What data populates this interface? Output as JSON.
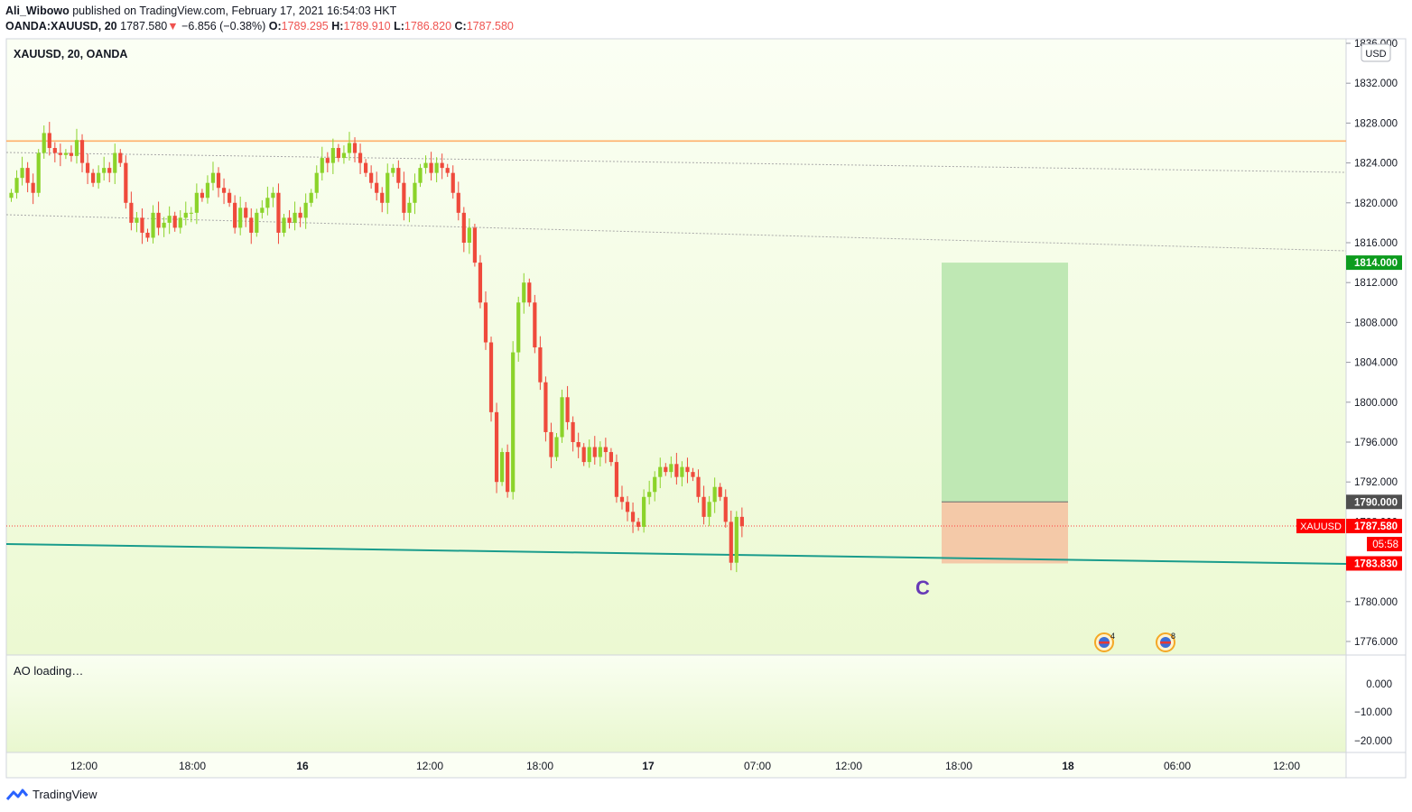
{
  "header": {
    "author": "Ali_Wibowo",
    "published_text": "published on TradingView.com, February 17, 2021 16:54:03 HKT",
    "symbol_full": "OANDA:XAUUSD, 20",
    "last_price": "1787.580",
    "change_arrow": "▼",
    "change": "−6.856 (−0.38%)",
    "o_label": "O:",
    "o_value": "1789.295",
    "h_label": "H:",
    "h_value": "1789.910",
    "l_label": "L:",
    "l_value": "1786.820",
    "c_label": "C:",
    "c_value": "1787.580"
  },
  "pane_title": "XAUUSD, 20, OANDA",
  "currency_badge": "USD",
  "indicator_label": "AO loading…",
  "wave_label": "C",
  "events": [
    {
      "icon": "us-flag-icon",
      "count": "4"
    },
    {
      "icon": "us-flag-icon",
      "count": "8"
    }
  ],
  "price_tags": {
    "target": "1814.000",
    "entry": "1790.000",
    "symbol": "XAUUSD",
    "current": "1787.580",
    "countdown": "05:58",
    "stop": "1783.830"
  },
  "footer_brand": "TradingView",
  "colors": {
    "bull": "#8bd32a",
    "bear": "#ef4a3c",
    "resistance": "#ffb06a",
    "trendline": "#1a9c8c",
    "target_zone": "#bfe8b4",
    "stop_zone": "#f4c9a8",
    "price_red": "#ff0000",
    "target_green": "#0d9c1e",
    "entry_gray": "#4f4f4f"
  },
  "chart_data": {
    "type": "candlestick",
    "symbol": "XAUUSD",
    "interval": "20",
    "ylim": [
      1774,
      1836
    ],
    "y_ticks": [
      "1836.000",
      "1832.000",
      "1828.000",
      "1824.000",
      "1820.000",
      "1816.000",
      "1812.000",
      "1808.000",
      "1804.000",
      "1800.000",
      "1796.000",
      "1792.000",
      "1788.000",
      "1784.000",
      "1780.000",
      "1776.000"
    ],
    "x_ticks": [
      "12:00",
      "18:00",
      "16",
      "12:00",
      "18:00",
      "17",
      "07:00",
      "12:00",
      "18:00",
      "18",
      "06:00",
      "12:00"
    ],
    "ao_ticks": [
      "0.000",
      "−10.000",
      "−20.000"
    ],
    "resistance_level": 1826.2,
    "long_position": {
      "entry": 1790.0,
      "target": 1814.0,
      "stop": 1783.83
    },
    "current_price": 1787.58,
    "closes": [
      1821.0,
      1822.5,
      1823.5,
      1822.0,
      1821.0,
      1825.0,
      1827.0,
      1825.5,
      1825.0,
      1824.8,
      1825.0,
      1824.7,
      1826.3,
      1824.0,
      1823.0,
      1822.0,
      1823.0,
      1823.5,
      1823.0,
      1825.0,
      1824.0,
      1820.0,
      1818.0,
      1818.5,
      1817.0,
      1816.5,
      1819.0,
      1817.5,
      1818.0,
      1818.7,
      1817.5,
      1818.5,
      1819.0,
      1819.0,
      1821.0,
      1820.5,
      1822.0,
      1823.0,
      1821.5,
      1821.0,
      1820.0,
      1817.5,
      1819.5,
      1818.5,
      1817.0,
      1819.0,
      1819.5,
      1820.5,
      1821.0,
      1817.0,
      1818.5,
      1818.0,
      1819.0,
      1818.5,
      1820.0,
      1821.0,
      1823.0,
      1824.5,
      1824.0,
      1825.5,
      1824.5,
      1825.0,
      1826.0,
      1825.0,
      1824.0,
      1823.0,
      1822.0,
      1821.0,
      1820.0,
      1823.0,
      1823.5,
      1822.0,
      1819.0,
      1820.0,
      1822.0,
      1823.5,
      1824.0,
      1823.0,
      1824.0,
      1823.5,
      1823.0,
      1821.0,
      1819.0,
      1816.0,
      1817.5,
      1814.0,
      1810.0,
      1806.0,
      1799.0,
      1792.0,
      1795.0,
      1791.0,
      1805.0,
      1810.0,
      1812.0,
      1810.0,
      1805.5,
      1802.0,
      1797.0,
      1794.5,
      1796.5,
      1800.5,
      1798.0,
      1796.0,
      1795.5,
      1794.0,
      1795.5,
      1794.5,
      1795.5,
      1795.0,
      1794.0,
      1790.5,
      1790.0,
      1789.0,
      1788.0,
      1787.5,
      1790.5,
      1791.0,
      1792.5,
      1793.5,
      1793.0,
      1793.8,
      1792.5,
      1793.5,
      1793.0,
      1792.5,
      1790.5,
      1788.5,
      1790.0,
      1791.5,
      1790.5,
      1788.0,
      1783.9,
      1788.5,
      1787.58
    ]
  }
}
